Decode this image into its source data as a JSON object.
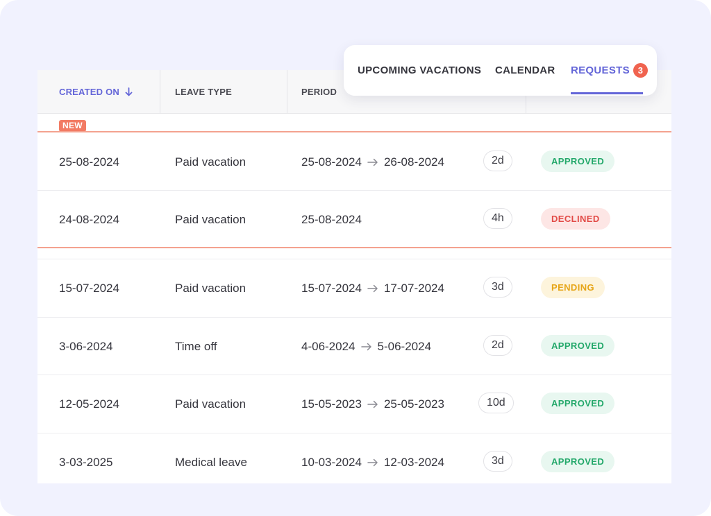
{
  "table": {
    "headers": {
      "created_on": "CREATED ON",
      "leave_type": "LEAVE TYPE",
      "period": "PERIOD"
    },
    "new_badge": "NEW",
    "rows": [
      {
        "created": "25-08-2024",
        "type": "Paid vacation",
        "start": "25-08-2024",
        "end": "26-08-2024",
        "duration": "2d",
        "status": "APPROVED"
      },
      {
        "created": "24-08-2024",
        "type": "Paid vacation",
        "start": "25-08-2024",
        "end": "",
        "duration": "4h",
        "status": "DECLINED"
      },
      {
        "created": "15-07-2024",
        "type": "Paid vacation",
        "start": "15-07-2024",
        "end": "17-07-2024",
        "duration": "3d",
        "status": "PENDING"
      },
      {
        "created": "3-06-2024",
        "type": "Time off",
        "start": "4-06-2024",
        "end": "5-06-2024",
        "duration": "2d",
        "status": "APPROVED"
      },
      {
        "created": "12-05-2024",
        "type": "Paid vacation",
        "start": "15-05-2023",
        "end": "25-05-2023",
        "duration": "10d",
        "status": "APPROVED"
      },
      {
        "created": "3-03-2025",
        "type": "Medical leave",
        "start": "10-03-2024",
        "end": "12-03-2024",
        "duration": "3d",
        "status": "APPROVED"
      }
    ]
  },
  "tabs": {
    "upcoming": "UPCOMING VACATIONS",
    "calendar": "CALENDAR",
    "requests": "REQUESTS",
    "requests_count": "3",
    "active": "requests"
  },
  "icons": {
    "sort": "arrow-down-icon",
    "period_separator": "arrow-right-icon"
  },
  "colors": {
    "accent": "#6466d8",
    "background": "#f1f2fe",
    "new_highlight": "#f27b64",
    "approved": "#23a86a",
    "declined": "#e24b47",
    "pending": "#e6a517"
  }
}
